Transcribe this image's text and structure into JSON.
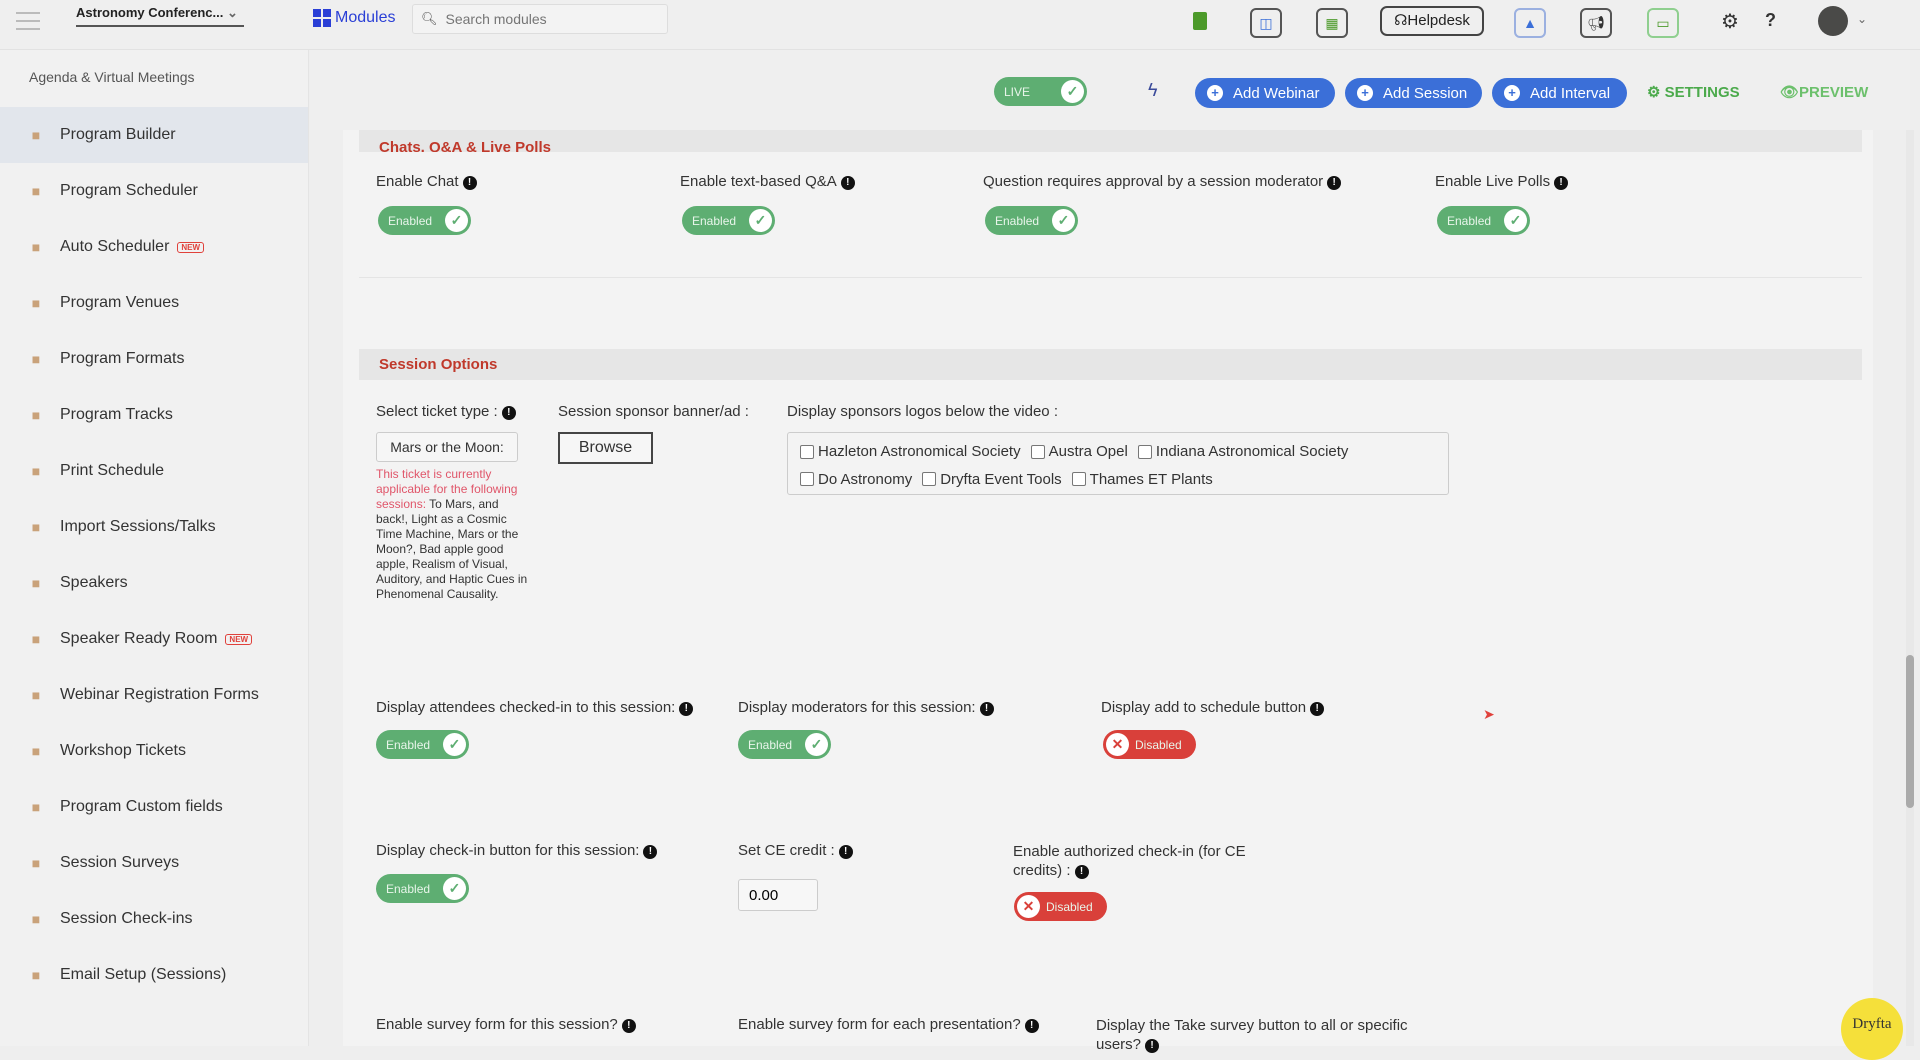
{
  "topbar": {
    "event_name": "Astronomy Conferenc...",
    "modules_label": "Modules",
    "search_placeholder": "Search modules",
    "helpdesk_label": "Helpdesk",
    "icons": [
      "menu-icon",
      "briefcase-icon",
      "money-icon",
      "calendar-icon",
      "headset-icon",
      "rocket-icon",
      "megaphone-icon",
      "monitor-icon",
      "gear-icon",
      "help-icon",
      "avatar"
    ]
  },
  "sidebar": {
    "header": "Agenda & Virtual Meetings",
    "items": [
      {
        "label": "Program Builder",
        "icon": "hourglass-icon",
        "active": true
      },
      {
        "label": "Program Scheduler",
        "icon": "calendar-icon"
      },
      {
        "label": "Auto Scheduler",
        "icon": "calendar-icon",
        "badge": "NEW"
      },
      {
        "label": "Program Venues",
        "icon": "map-pin-icon"
      },
      {
        "label": "Program Formats",
        "icon": "list-icon"
      },
      {
        "label": "Program Tracks",
        "icon": "road-icon"
      },
      {
        "label": "Print Schedule",
        "icon": "document-icon"
      },
      {
        "label": "Import Sessions/Talks",
        "icon": "upload-icon"
      },
      {
        "label": "Speakers",
        "icon": "microphone-icon"
      },
      {
        "label": "Speaker Ready Room",
        "icon": "microphone-icon",
        "badge": "NEW"
      },
      {
        "label": "Webinar Registration Forms",
        "icon": "form-icon"
      },
      {
        "label": "Workshop Tickets",
        "icon": "ticket-icon"
      },
      {
        "label": "Program Custom fields",
        "icon": "form-icon"
      },
      {
        "label": "Session Surveys",
        "icon": "survey-icon"
      },
      {
        "label": "Session Check-ins",
        "icon": "check-circle-icon"
      },
      {
        "label": "Email Setup (Sessions)",
        "icon": "envelope-icon"
      }
    ]
  },
  "toolbar": {
    "live_label": "LIVE",
    "add_webinar": "Add Webinar",
    "add_session": "Add Session",
    "add_interval": "Add Interval",
    "settings": "SETTINGS",
    "preview": "PREVIEW"
  },
  "chats": {
    "title": "Chats, Q&A & Live Polls",
    "fields": [
      {
        "label": "Enable Chat",
        "state": "Enabled"
      },
      {
        "label": "Enable text-based Q&A",
        "state": "Enabled"
      },
      {
        "label": "Question requires approval by a session moderator",
        "state": "Enabled"
      },
      {
        "label": "Enable Live Polls",
        "state": "Enabled"
      }
    ]
  },
  "session_options": {
    "title": "Session Options",
    "ticket_label": "Select ticket type :",
    "ticket_value": "Mars or the Moon:",
    "ticket_note_red": "This ticket is currently applicable for the following sessions:",
    "ticket_note_sessions": "To Mars, and back!, Light as a Cosmic Time Machine, Mars or the Moon?, Bad apple good apple, Realism of Visual, Auditory, and Haptic Cues in Phenomenal Causality.",
    "sponsor_label": "Session sponsor banner/ad :",
    "browse": "Browse",
    "sponsors_logos_label": "Display sponsors logos below the video :",
    "sponsors": [
      "Hazleton Astronomical Society",
      "Austra Opel",
      "Indiana Astronomical Society",
      "Do Astronomy",
      "Dryfta Event Tools",
      "Thames ET Plants"
    ],
    "attendees_label": "Display attendees checked-in to this session:",
    "attendees_state": "Enabled",
    "moderators_label": "Display moderators for this session:",
    "moderators_state": "Enabled",
    "add_schedule_label": "Display add to schedule button",
    "add_schedule_state": "Disabled",
    "checkin_btn_label": "Display check-in button for this session:",
    "checkin_btn_state": "Enabled",
    "ce_label": "Set CE credit :",
    "ce_value": "0.00",
    "auth_checkin_label": "Enable authorized check-in (for CE credits) :",
    "auth_checkin_state": "Disabled",
    "survey_session_label": "Enable survey form for this session?",
    "survey_presentation_label": "Enable survey form for each presentation?",
    "take_survey_label": "Display the Take survey button to all or specific users?"
  },
  "brand_badge": "Dryfta"
}
